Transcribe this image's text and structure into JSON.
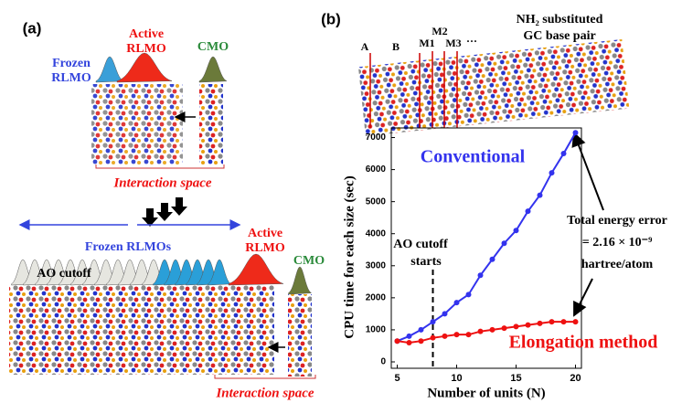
{
  "panel_a": {
    "label": "(a)",
    "frozen": [
      "Frozen",
      "RLMO"
    ],
    "active": [
      "Active",
      "RLMO"
    ],
    "cmo": "CMO",
    "interaction": "Interaction space",
    "lower_frozen": "Frozen RLMOs",
    "ao_cutoff": "AO cutoff",
    "lower_active": [
      "Active",
      "RLMO"
    ],
    "lower_cmo": "CMO",
    "lower_interaction": "Interaction space"
  },
  "panel_b": {
    "label": "(b)",
    "molecule": [
      "NH₂ substituted",
      "GC base pair"
    ],
    "markers": [
      "A",
      "B",
      "M1",
      "M2",
      "M3",
      "···"
    ]
  },
  "chart_data": {
    "type": "line",
    "xlabel": "Number of units (N)",
    "ylabel": "CPU time for each size (sec)",
    "x": [
      5,
      6,
      7,
      8,
      9,
      10,
      11,
      12,
      13,
      14,
      15,
      16,
      17,
      18,
      19,
      20
    ],
    "series": [
      {
        "name": "Conventional",
        "color": "#3333ee",
        "values": [
          650,
          800,
          1000,
          1250,
          1500,
          1850,
          2100,
          2700,
          3200,
          3700,
          4100,
          4700,
          5200,
          5900,
          6500,
          7150
        ]
      },
      {
        "name": "Elongation method",
        "color": "#ee1111",
        "values": [
          650,
          600,
          650,
          750,
          800,
          850,
          850,
          950,
          1000,
          1050,
          1100,
          1150,
          1200,
          1250,
          1250,
          1250
        ]
      }
    ],
    "xlim": [
      4.5,
      20.5
    ],
    "ylim": [
      -200,
      7300
    ],
    "xticks": [
      5,
      10,
      15,
      20
    ],
    "yticks": [
      0,
      1000,
      2000,
      3000,
      4000,
      5000,
      6000,
      7000
    ],
    "ao_cutoff_x": 8,
    "ao_cutoff_label": [
      "AO cutoff",
      "starts"
    ],
    "energy_error": [
      "Total energy error",
      "= 2.16 × 10⁻⁹",
      "hartree/atom"
    ]
  }
}
